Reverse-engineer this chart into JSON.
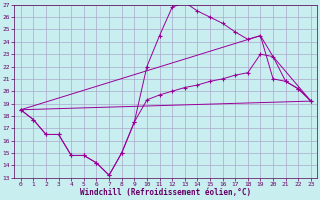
{
  "xlabel": "Windchill (Refroidissement éolien,°C)",
  "bg_color": "#c8eef0",
  "grid_color": "#aaaacc",
  "line_color": "#990099",
  "xlim": [
    -0.5,
    23.5
  ],
  "ylim": [
    13,
    27
  ],
  "xticks": [
    0,
    1,
    2,
    3,
    4,
    5,
    6,
    7,
    8,
    9,
    10,
    11,
    12,
    13,
    14,
    15,
    16,
    17,
    18,
    19,
    20,
    21,
    22,
    23
  ],
  "yticks": [
    13,
    14,
    15,
    16,
    17,
    18,
    19,
    20,
    21,
    22,
    23,
    24,
    25,
    26,
    27
  ],
  "line1_x": [
    0,
    1,
    2,
    3,
    4,
    5,
    6,
    7,
    8,
    9,
    10,
    11,
    12,
    13,
    14,
    15,
    16,
    17,
    18,
    19,
    20,
    21,
    22,
    23
  ],
  "line1_y": [
    18.5,
    17.7,
    16.5,
    16.5,
    14.8,
    14.8,
    14.2,
    13.2,
    15.0,
    17.5,
    19.3,
    19.7,
    20.0,
    20.3,
    20.5,
    20.8,
    21.0,
    21.3,
    21.5,
    23.0,
    22.8,
    20.8,
    20.2,
    19.2
  ],
  "line2_x": [
    0,
    1,
    2,
    3,
    4,
    5,
    6,
    7,
    8,
    9,
    10,
    11,
    12,
    13,
    14,
    15,
    16,
    17,
    18,
    19,
    20,
    21,
    22,
    23
  ],
  "line2_y": [
    18.5,
    17.7,
    16.5,
    16.5,
    14.8,
    14.8,
    14.2,
    13.2,
    15.0,
    17.5,
    22.0,
    24.5,
    26.8,
    27.2,
    26.5,
    26.0,
    25.5,
    24.8,
    24.2,
    24.5,
    21.0,
    20.8,
    20.2,
    19.2
  ],
  "line3_x": [
    0,
    23
  ],
  "line3_y": [
    18.5,
    19.2
  ],
  "line4_x": [
    0,
    19,
    20,
    23
  ],
  "line4_y": [
    18.5,
    24.5,
    22.8,
    19.2
  ]
}
